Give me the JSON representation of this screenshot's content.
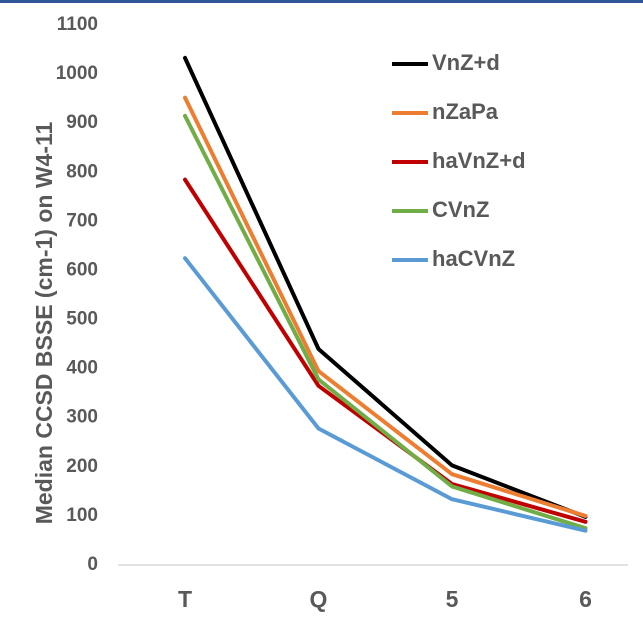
{
  "chart_data": {
    "type": "line",
    "title": "",
    "xlabel": "",
    "ylabel": "Median CCSD BSSE (cm-1) on W4-11",
    "categories": [
      "T",
      "Q",
      "5",
      "6"
    ],
    "ylim": [
      0,
      1100
    ],
    "yticks": [
      0,
      100,
      200,
      300,
      400,
      500,
      600,
      700,
      800,
      900,
      1000,
      1100
    ],
    "grid": false,
    "legend_position": "top-right",
    "series": [
      {
        "name": "VnZ+d",
        "color": "#000000",
        "values": [
          1033,
          440,
          203,
          98
        ]
      },
      {
        "name": "nZaPa",
        "color": "#ed7d31",
        "values": [
          952,
          395,
          185,
          100
        ]
      },
      {
        "name": "haVnZ+d",
        "color": "#c00000",
        "values": [
          785,
          365,
          165,
          88
        ]
      },
      {
        "name": "CVnZ",
        "color": "#70ad47",
        "values": [
          915,
          378,
          160,
          75
        ]
      },
      {
        "name": "haCVnZ",
        "color": "#5b9bd5",
        "values": [
          625,
          278,
          134,
          70
        ]
      }
    ]
  }
}
